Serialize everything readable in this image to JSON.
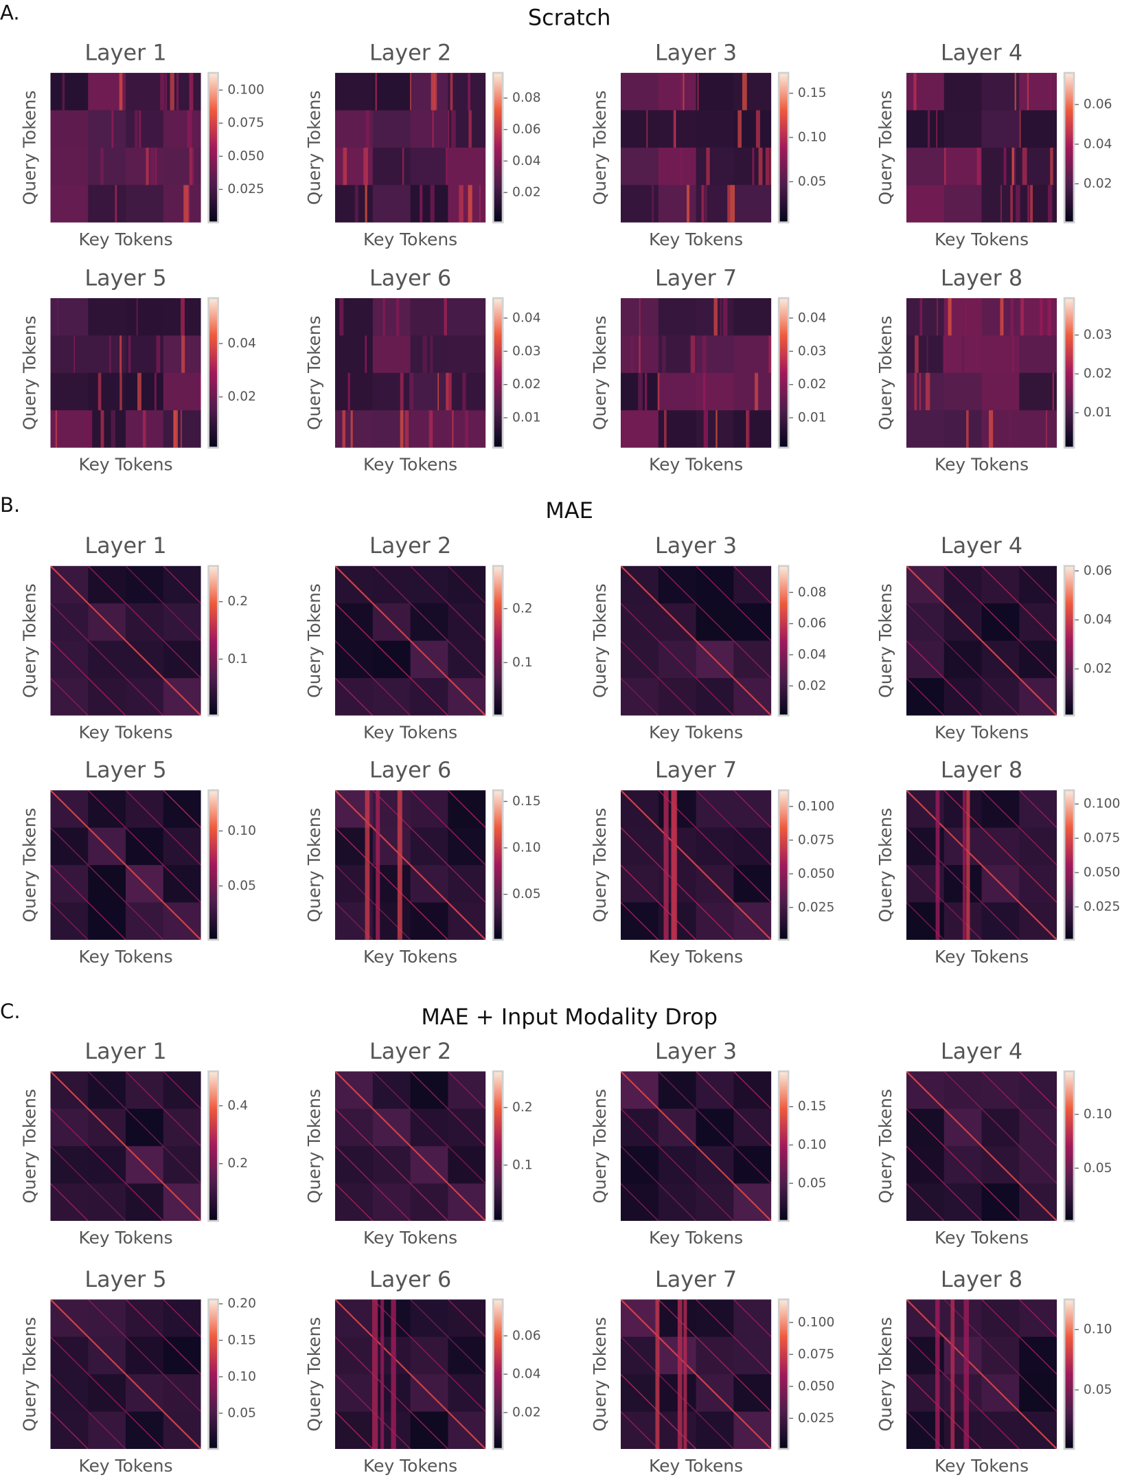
{
  "panels": [
    {
      "label": "A.",
      "title": "Scratch"
    },
    {
      "label": "B.",
      "title": "MAE"
    },
    {
      "label": "C.",
      "title": "MAE + Input Modality Drop"
    }
  ],
  "chart_data": [
    {
      "type": "heatmap",
      "title": "Layer 1",
      "xlabel": "Key Tokens",
      "ylabel": "Query Tokens",
      "clim": [
        0.0,
        0.113
      ],
      "cticks": [
        {
          "value": 0.1,
          "label": "0.100"
        },
        0.075,
        {
          "value": 0.05,
          "label": "0.050"
        },
        0.025
      ]
    },
    {
      "type": "heatmap",
      "title": "Layer 2",
      "xlabel": "Key Tokens",
      "ylabel": "Query Tokens",
      "clim": [
        0.001,
        0.096
      ],
      "cticks": [
        0.08,
        0.06,
        0.04,
        0.02
      ]
    },
    {
      "type": "heatmap",
      "title": "Layer 3",
      "xlabel": "Key Tokens",
      "ylabel": "Query Tokens",
      "clim": [
        0.004,
        0.173
      ],
      "cticks": [
        0.15,
        {
          "value": 0.1,
          "label": "0.10"
        },
        0.05
      ]
    },
    {
      "type": "heatmap",
      "title": "Layer 4",
      "xlabel": "Key Tokens",
      "ylabel": "Query Tokens",
      "clim": [
        0.0005,
        0.076
      ],
      "cticks": [
        0.06,
        0.04,
        0.02
      ]
    },
    {
      "type": "heatmap",
      "title": "Layer 5",
      "xlabel": "Key Tokens",
      "ylabel": "Query Tokens",
      "clim": [
        0.001,
        0.057
      ],
      "cticks": [
        0.04,
        0.02
      ]
    },
    {
      "type": "heatmap",
      "title": "Layer 6",
      "xlabel": "Key Tokens",
      "ylabel": "Query Tokens",
      "clim": [
        0.001,
        0.046
      ],
      "cticks": [
        0.04,
        0.03,
        0.02,
        0.01
      ]
    },
    {
      "type": "heatmap",
      "title": "Layer 7",
      "xlabel": "Key Tokens",
      "ylabel": "Query Tokens",
      "clim": [
        0.001,
        0.046
      ],
      "cticks": [
        0.04,
        0.03,
        0.02,
        0.01
      ]
    },
    {
      "type": "heatmap",
      "title": "Layer 8",
      "xlabel": "Key Tokens",
      "ylabel": "Query Tokens",
      "clim": [
        0.001,
        0.0395
      ],
      "cticks": [
        0.03,
        0.02,
        0.01
      ]
    },
    {
      "type": "heatmap",
      "title": "Layer 1",
      "xlabel": "Key Tokens",
      "ylabel": "Query Tokens",
      "clim": [
        0.002,
        0.262
      ],
      "cticks": [
        0.2,
        0.1
      ]
    },
    {
      "type": "heatmap",
      "title": "Layer 2",
      "xlabel": "Key Tokens",
      "ylabel": "Query Tokens",
      "clim": [
        0.002,
        0.279
      ],
      "cticks": [
        0.2,
        0.1
      ]
    },
    {
      "type": "heatmap",
      "title": "Layer 3",
      "xlabel": "Key Tokens",
      "ylabel": "Query Tokens",
      "clim": [
        0.001,
        0.097
      ],
      "cticks": [
        0.08,
        0.06,
        0.04,
        0.02
      ]
    },
    {
      "type": "heatmap",
      "title": "Layer 4",
      "xlabel": "Key Tokens",
      "ylabel": "Query Tokens",
      "clim": [
        0.001,
        0.062
      ],
      "cticks": [
        0.06,
        0.04,
        0.02
      ]
    },
    {
      "type": "heatmap",
      "title": "Layer 5",
      "xlabel": "Key Tokens",
      "ylabel": "Query Tokens",
      "clim": [
        0.001,
        0.137
      ],
      "cticks": [
        {
          "value": 0.1,
          "label": "0.10"
        },
        0.05
      ]
    },
    {
      "type": "heatmap",
      "title": "Layer 6",
      "xlabel": "Key Tokens",
      "ylabel": "Query Tokens",
      "clim": [
        0.001,
        0.162
      ],
      "cticks": [
        0.15,
        {
          "value": 0.1,
          "label": "0.10"
        },
        0.05
      ]
    },
    {
      "type": "heatmap",
      "title": "Layer 7",
      "xlabel": "Key Tokens",
      "ylabel": "Query Tokens",
      "clim": [
        0.001,
        0.112
      ],
      "cticks": [
        {
          "value": 0.1,
          "label": "0.100"
        },
        0.075,
        {
          "value": 0.05,
          "label": "0.050"
        },
        0.025
      ]
    },
    {
      "type": "heatmap",
      "title": "Layer 8",
      "xlabel": "Key Tokens",
      "ylabel": "Query Tokens",
      "clim": [
        0.001,
        0.11
      ],
      "cticks": [
        {
          "value": 0.1,
          "label": "0.100"
        },
        0.075,
        {
          "value": 0.05,
          "label": "0.050"
        },
        0.025
      ]
    },
    {
      "type": "heatmap",
      "title": "Layer 1",
      "xlabel": "Key Tokens",
      "ylabel": "Query Tokens",
      "clim": [
        0.002,
        0.519
      ],
      "cticks": [
        0.4,
        0.2
      ]
    },
    {
      "type": "heatmap",
      "title": "Layer 2",
      "xlabel": "Key Tokens",
      "ylabel": "Query Tokens",
      "clim": [
        0.003,
        0.263
      ],
      "cticks": [
        0.2,
        0.1
      ]
    },
    {
      "type": "heatmap",
      "title": "Layer 3",
      "xlabel": "Key Tokens",
      "ylabel": "Query Tokens",
      "clim": [
        0.001,
        0.196
      ],
      "cticks": [
        0.15,
        {
          "value": 0.1,
          "label": "0.10"
        },
        0.05
      ]
    },
    {
      "type": "heatmap",
      "title": "Layer 4",
      "xlabel": "Key Tokens",
      "ylabel": "Query Tokens",
      "clim": [
        0.001,
        0.14
      ],
      "cticks": [
        {
          "value": 0.1,
          "label": "0.10"
        },
        0.05
      ]
    },
    {
      "type": "heatmap",
      "title": "Layer 5",
      "xlabel": "Key Tokens",
      "ylabel": "Query Tokens",
      "clim": [
        0.001,
        0.206
      ],
      "cticks": [
        {
          "value": 0.2,
          "label": "0.20"
        },
        0.15,
        {
          "value": 0.1,
          "label": "0.10"
        },
        0.05
      ]
    },
    {
      "type": "heatmap",
      "title": "Layer 6",
      "xlabel": "Key Tokens",
      "ylabel": "Query Tokens",
      "clim": [
        0.001,
        0.079
      ],
      "cticks": [
        0.06,
        0.04,
        0.02
      ]
    },
    {
      "type": "heatmap",
      "title": "Layer 7",
      "xlabel": "Key Tokens",
      "ylabel": "Query Tokens",
      "clim": [
        0.001,
        0.118
      ],
      "cticks": [
        {
          "value": 0.1,
          "label": "0.100"
        },
        0.075,
        {
          "value": 0.05,
          "label": "0.050"
        },
        0.025
      ]
    },
    {
      "type": "heatmap",
      "title": "Layer 8",
      "xlabel": "Key Tokens",
      "ylabel": "Query Tokens",
      "clim": [
        0.001,
        0.125
      ],
      "cticks": [
        {
          "value": 0.1,
          "label": "0.10"
        },
        0.05
      ]
    }
  ]
}
